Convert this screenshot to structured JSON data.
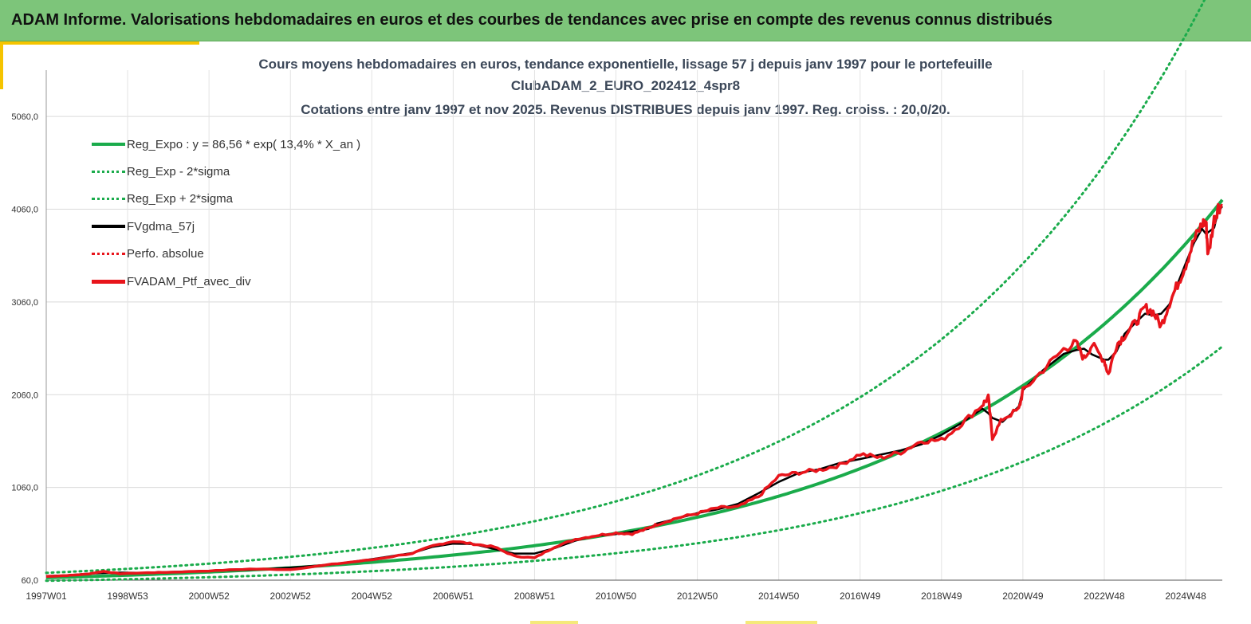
{
  "header": {
    "title": "ADAM Informe. Valorisations hebdomadaires en euros et des courbes de tendances avec prise en compte des revenus connus distribués"
  },
  "chart_data": {
    "type": "line",
    "title_lines": [
      "Cours moyens hebdomadaires  en euros, tendance exponentielle, lissage 57 j depuis janv 1997 pour le portefeuille",
      "ClubADAM_2_EURO_202412_4spr8",
      "Cotations  entre janv 1997 et nov 2025. Revenus DISTRIBUES depuis janv 1997. Reg. croiss. : 20,0/20."
    ],
    "xlabel": "",
    "ylabel": "",
    "y_ticks": [
      "60,0",
      "1060,0",
      "2060,0",
      "3060,0",
      "4060,0",
      "5060,0"
    ],
    "ylim": [
      60,
      5560
    ],
    "x_ticks": [
      "1997W01",
      "1998W53",
      "2000W52",
      "2002W52",
      "2004W52",
      "2006W51",
      "2008W51",
      "2010W50",
      "2012W50",
      "2014W50",
      "2016W49",
      "2018W49",
      "2020W49",
      "2022W48",
      "2024W48"
    ],
    "xlim": [
      1997.0,
      2025.9
    ],
    "grid": true,
    "legend": "top-left",
    "regression": {
      "a": 86.56,
      "rate": 0.134,
      "sigma_low_factor": 0.62,
      "sigma_high_factor": 1.61
    },
    "series": [
      {
        "name": "Reg_Expo : y = 86,56 * exp( 13,4% *  X_an )",
        "color": "#1aab4b",
        "style": "solid"
      },
      {
        "name": "Reg_Exp - 2*sigma",
        "color": "#1aab4b",
        "style": "dotted"
      },
      {
        "name": "Reg_Exp + 2*sigma",
        "color": "#1aab4b",
        "style": "dotted"
      },
      {
        "name": "FVgdma_57j",
        "color": "#000000",
        "style": "solid"
      },
      {
        "name": "Perfo. absolue",
        "color": "#e8141b",
        "style": "dotted"
      },
      {
        "name": "FVADAM_Ptf_avec_div",
        "color": "#e8141b",
        "style": "solid",
        "points": [
          [
            1997.0,
            100
          ],
          [
            1997.5,
            110
          ],
          [
            1998.0,
            125
          ],
          [
            1998.4,
            155
          ],
          [
            1998.8,
            130
          ],
          [
            1999.5,
            140
          ],
          [
            2000.0,
            145
          ],
          [
            2001.0,
            160
          ],
          [
            2002.0,
            180
          ],
          [
            2003.0,
            175
          ],
          [
            2004.0,
            230
          ],
          [
            2005.0,
            280
          ],
          [
            2006.0,
            350
          ],
          [
            2006.5,
            430
          ],
          [
            2007.0,
            480
          ],
          [
            2007.5,
            450
          ],
          [
            2008.0,
            420
          ],
          [
            2008.5,
            320
          ],
          [
            2009.0,
            300
          ],
          [
            2009.5,
            420
          ],
          [
            2010.0,
            500
          ],
          [
            2010.5,
            540
          ],
          [
            2011.0,
            570
          ],
          [
            2011.4,
            560
          ],
          [
            2011.8,
            620
          ],
          [
            2012.0,
            660
          ],
          [
            2012.5,
            730
          ],
          [
            2013.0,
            780
          ],
          [
            2013.5,
            840
          ],
          [
            2014.0,
            850
          ],
          [
            2014.5,
            960
          ],
          [
            2015.0,
            1180
          ],
          [
            2015.5,
            1220
          ],
          [
            2016.0,
            1250
          ],
          [
            2016.5,
            1300
          ],
          [
            2017.0,
            1420
          ],
          [
            2017.5,
            1380
          ],
          [
            2018.0,
            1440
          ],
          [
            2018.5,
            1560
          ],
          [
            2019.0,
            1570
          ],
          [
            2019.5,
            1750
          ],
          [
            2020.0,
            1950
          ],
          [
            2020.15,
            2030
          ],
          [
            2020.25,
            1600
          ],
          [
            2020.5,
            1800
          ],
          [
            2020.9,
            1900
          ],
          [
            2021.0,
            2100
          ],
          [
            2021.5,
            2330
          ],
          [
            2022.0,
            2550
          ],
          [
            2022.3,
            2620
          ],
          [
            2022.5,
            2450
          ],
          [
            2022.7,
            2600
          ],
          [
            2023.0,
            2430
          ],
          [
            2023.1,
            2280
          ],
          [
            2023.3,
            2600
          ],
          [
            2023.5,
            2700
          ],
          [
            2023.8,
            2850
          ],
          [
            2024.0,
            3000
          ],
          [
            2024.2,
            2950
          ],
          [
            2024.4,
            2800
          ],
          [
            2024.6,
            3050
          ],
          [
            2024.8,
            3250
          ],
          [
            2025.0,
            3460
          ],
          [
            2025.2,
            3720
          ],
          [
            2025.4,
            3900
          ],
          [
            2025.5,
            3930
          ],
          [
            2025.55,
            3550
          ],
          [
            2025.7,
            3950
          ],
          [
            2025.8,
            4080
          ],
          [
            2025.9,
            4100
          ]
        ]
      }
    ]
  }
}
